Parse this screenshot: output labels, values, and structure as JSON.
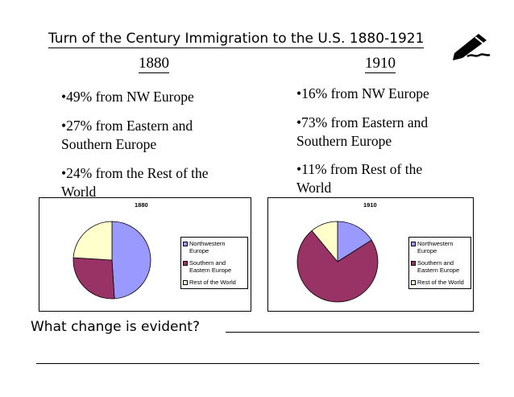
{
  "title": "Turn of the Century Immigration to the U.S. 1880-1921",
  "columns": [
    {
      "heading": "1880",
      "bullets": [
        "•49% from NW Europe",
        "•27% from Eastern and Southern Europe",
        "•24% from the Rest of the World"
      ]
    },
    {
      "heading": "1910",
      "bullets": [
        "•16% from NW Europe",
        "•73% from Eastern and Southern Europe",
        "•11% from Rest of the World"
      ]
    }
  ],
  "question": "What change is evident?",
  "colors": {
    "nw_europe": "#9999ff",
    "eastern_southern": "#993366",
    "rest": "#ffffcc"
  },
  "chart_data": [
    {
      "type": "pie",
      "title": "1880",
      "categories": [
        "Northwestern Europe",
        "Southern and Eastern Europe",
        "Rest of the World"
      ],
      "values": [
        49,
        27,
        24
      ],
      "legend": "right"
    },
    {
      "type": "pie",
      "title": "1910",
      "categories": [
        "Northwestern Europe",
        "Southern and Eastern Europe",
        "Rest of the World"
      ],
      "values": [
        16,
        73,
        11
      ],
      "legend": "right"
    }
  ]
}
